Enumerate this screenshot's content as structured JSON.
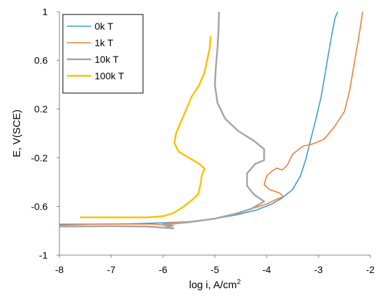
{
  "chart_data": {
    "type": "line",
    "xlabel": "log i, A/cm",
    "xlabel_superscript": "2",
    "ylabel": "E, V(SCE)",
    "xlim": [
      -8,
      -2
    ],
    "ylim": [
      -1,
      1
    ],
    "xticks": [
      "-8",
      "-7",
      "-6",
      "-5",
      "-4",
      "-3",
      "-2"
    ],
    "yticks": [
      "-1",
      "-0.6",
      "-0.2",
      "0.2",
      "0.6",
      "1"
    ],
    "xtick_values": [
      -8,
      -7,
      -6,
      -5,
      -4,
      -3,
      -2
    ],
    "ytick_values": [
      -1,
      -0.6,
      -0.2,
      0.2,
      0.6,
      1
    ],
    "grid": false,
    "legend_position": "top-left",
    "series": [
      {
        "name": "0k T",
        "color": "#3A9AD9",
        "points": [
          [
            -8.0,
            -0.752
          ],
          [
            -7.2,
            -0.745
          ],
          [
            -6.6,
            -0.742
          ],
          [
            -6.0,
            -0.735
          ],
          [
            -5.5,
            -0.725
          ],
          [
            -5.0,
            -0.7
          ],
          [
            -4.6,
            -0.67
          ],
          [
            -4.2,
            -0.63
          ],
          [
            -3.9,
            -0.58
          ],
          [
            -3.7,
            -0.53
          ],
          [
            -3.5,
            -0.46
          ],
          [
            -3.35,
            -0.35
          ],
          [
            -3.25,
            -0.22
          ],
          [
            -3.15,
            -0.05
          ],
          [
            -3.05,
            0.12
          ],
          [
            -2.95,
            0.3
          ],
          [
            -2.85,
            0.55
          ],
          [
            -2.75,
            0.8
          ],
          [
            -2.68,
            0.95
          ],
          [
            -2.63,
            1.0
          ]
        ]
      },
      {
        "name": "1k T",
        "color": "#EF7D31",
        "points": [
          [
            -8.0,
            -0.745
          ],
          [
            -7.0,
            -0.745
          ],
          [
            -6.2,
            -0.745
          ],
          [
            -5.8,
            -0.76
          ],
          [
            -6.0,
            -0.74
          ],
          [
            -5.5,
            -0.725
          ],
          [
            -5.0,
            -0.7
          ],
          [
            -4.6,
            -0.66
          ],
          [
            -4.3,
            -0.62
          ],
          [
            -4.0,
            -0.58
          ],
          [
            -3.8,
            -0.54
          ],
          [
            -3.68,
            -0.52
          ],
          [
            -3.75,
            -0.49
          ],
          [
            -3.95,
            -0.46
          ],
          [
            -4.05,
            -0.42
          ],
          [
            -4.0,
            -0.35
          ],
          [
            -3.9,
            -0.31
          ],
          [
            -3.8,
            -0.285
          ],
          [
            -3.7,
            -0.3
          ],
          [
            -3.6,
            -0.26
          ],
          [
            -3.5,
            -0.17
          ],
          [
            -3.3,
            -0.105
          ],
          [
            -3.1,
            -0.085
          ],
          [
            -2.9,
            -0.05
          ],
          [
            -2.7,
            0.05
          ],
          [
            -2.5,
            0.18
          ],
          [
            -2.4,
            0.35
          ],
          [
            -2.3,
            0.6
          ],
          [
            -2.2,
            0.85
          ],
          [
            -2.15,
            1.0
          ]
        ]
      },
      {
        "name": "10k T",
        "color": "#A5A5A5",
        "points": [
          [
            -8.0,
            -0.765
          ],
          [
            -7.0,
            -0.762
          ],
          [
            -6.3,
            -0.765
          ],
          [
            -5.8,
            -0.78
          ],
          [
            -6.0,
            -0.75
          ],
          [
            -5.5,
            -0.73
          ],
          [
            -5.0,
            -0.7
          ],
          [
            -4.6,
            -0.66
          ],
          [
            -4.3,
            -0.62
          ],
          [
            -4.05,
            -0.56
          ],
          [
            -4.25,
            -0.5
          ],
          [
            -4.38,
            -0.43
          ],
          [
            -4.38,
            -0.33
          ],
          [
            -4.22,
            -0.25
          ],
          [
            -4.05,
            -0.22
          ],
          [
            -4.05,
            -0.13
          ],
          [
            -4.25,
            -0.06
          ],
          [
            -4.55,
            0.02
          ],
          [
            -4.8,
            0.12
          ],
          [
            -4.95,
            0.25
          ],
          [
            -5.0,
            0.4
          ],
          [
            -4.98,
            0.55
          ],
          [
            -4.95,
            0.7
          ],
          [
            -4.93,
            0.85
          ],
          [
            -4.92,
            1.0
          ]
        ]
      },
      {
        "name": "100k T",
        "color": "#FFC000",
        "points": [
          [
            -7.6,
            -0.69
          ],
          [
            -6.8,
            -0.69
          ],
          [
            -6.3,
            -0.69
          ],
          [
            -6.0,
            -0.68
          ],
          [
            -5.8,
            -0.655
          ],
          [
            -5.6,
            -0.6
          ],
          [
            -5.45,
            -0.55
          ],
          [
            -5.32,
            -0.5
          ],
          [
            -5.28,
            -0.42
          ],
          [
            -5.25,
            -0.34
          ],
          [
            -5.2,
            -0.29
          ],
          [
            -5.3,
            -0.25
          ],
          [
            -5.5,
            -0.2
          ],
          [
            -5.7,
            -0.15
          ],
          [
            -5.78,
            -0.08
          ],
          [
            -5.75,
            0.0
          ],
          [
            -5.65,
            0.1
          ],
          [
            -5.55,
            0.2
          ],
          [
            -5.45,
            0.3
          ],
          [
            -5.3,
            0.4
          ],
          [
            -5.2,
            0.5
          ],
          [
            -5.15,
            0.6
          ],
          [
            -5.1,
            0.7
          ],
          [
            -5.08,
            0.8
          ]
        ]
      }
    ]
  }
}
